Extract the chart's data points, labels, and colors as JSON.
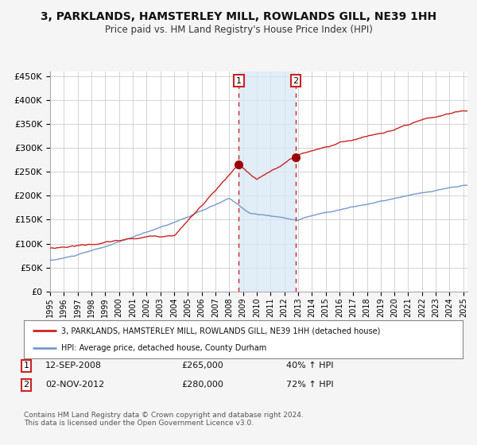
{
  "title_line1": "3, PARKLANDS, HAMSTERLEY MILL, ROWLANDS GILL, NE39 1HH",
  "title_line2": "Price paid vs. HM Land Registry's House Price Index (HPI)",
  "ylim": [
    0,
    460000
  ],
  "yticks": [
    0,
    50000,
    100000,
    150000,
    200000,
    250000,
    300000,
    350000,
    400000,
    450000
  ],
  "ytick_labels": [
    "£0",
    "£50K",
    "£100K",
    "£150K",
    "£200K",
    "£250K",
    "£300K",
    "£350K",
    "£400K",
    "£450K"
  ],
  "background_color": "#f5f5f5",
  "plot_bg_color": "#ffffff",
  "grid_color": "#cccccc",
  "line1_color": "#cc2222",
  "line2_color": "#7799cc",
  "marker_color": "#990000",
  "sale1_date": "12-SEP-2008",
  "sale1_price": 265000,
  "sale1_label": "1",
  "sale2_date": "02-NOV-2012",
  "sale2_price": 280000,
  "sale2_label": "2",
  "sale1_pct": "40%",
  "sale2_pct": "72%",
  "legend_line1": "3, PARKLANDS, HAMSTERLEY MILL, ROWLANDS GILL, NE39 1HH (detached house)",
  "legend_line2": "HPI: Average price, detached house, County Durham",
  "footnote": "Contains HM Land Registry data © Crown copyright and database right 2024.\nThis data is licensed under the Open Government Licence v3.0.",
  "sale1_x": 2008.7,
  "sale2_x": 2012.84,
  "shaded_start": 2008.7,
  "shaded_end": 2012.84,
  "xlim_start": 1995.0,
  "xlim_end": 2025.3
}
